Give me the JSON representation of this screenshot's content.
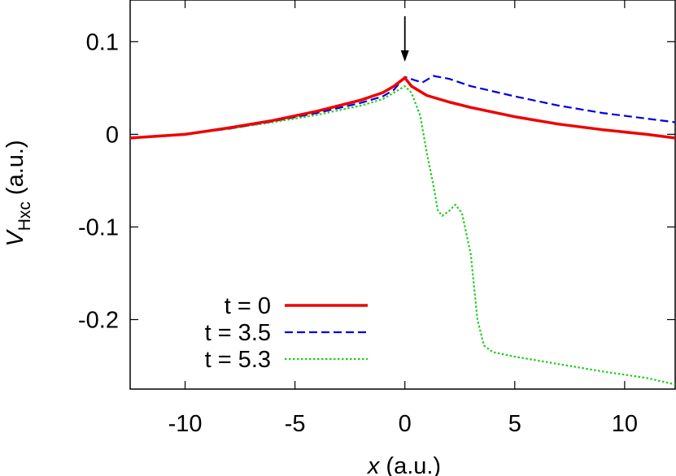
{
  "chart_data": {
    "type": "line",
    "xlabel": "x",
    "xlabel_units": "(a.u.)",
    "ylabel": "V",
    "ylabel_subscript": "Hxc",
    "ylabel_units": "(a.u.)",
    "xlim": [
      -12.5,
      12.3
    ],
    "ylim": [
      -0.275,
      0.145
    ],
    "xticks": [
      -10,
      -5,
      0,
      5,
      10
    ],
    "xtick_labels": [
      "-10",
      "-5",
      "0",
      "5",
      "10"
    ],
    "yticks": [
      0.1,
      0,
      -0.1,
      -0.2
    ],
    "ytick_labels": [
      "0.1",
      "0",
      "-0.1",
      "-0.2"
    ],
    "grid": false,
    "legend_position": "bottom-left",
    "annotation": {
      "type": "arrow",
      "x": 0,
      "direction": "down"
    },
    "series": [
      {
        "name": "t = 0",
        "color": "#ee0000",
        "dash": "solid",
        "x": [
          -12.5,
          -10,
          -8,
          -6,
          -4,
          -2,
          -1,
          -0.5,
          0,
          0.3,
          1,
          2,
          3,
          5,
          7,
          9,
          11,
          12.3
        ],
        "y": [
          -0.004,
          0.0,
          0.007,
          0.015,
          0.025,
          0.037,
          0.045,
          0.052,
          0.061,
          0.052,
          0.042,
          0.035,
          0.029,
          0.019,
          0.011,
          0.005,
          0.0,
          -0.004
        ]
      },
      {
        "name": "t = 3.5",
        "color": "#0000dd",
        "dash": "dashed",
        "x": [
          -12.5,
          -10,
          -8,
          -6,
          -4,
          -2,
          -1,
          -0.5,
          0,
          0.5,
          0.8,
          1.3,
          2,
          3,
          5,
          7,
          9,
          11,
          12.3
        ],
        "y": [
          -0.004,
          0.0,
          0.006,
          0.014,
          0.023,
          0.034,
          0.041,
          0.048,
          0.062,
          0.058,
          0.056,
          0.063,
          0.06,
          0.052,
          0.041,
          0.031,
          0.023,
          0.017,
          0.013
        ]
      },
      {
        "name": "t = 5.3",
        "color": "#22cc22",
        "dash": "dotted",
        "x": [
          -12.5,
          -10,
          -8,
          -6,
          -4,
          -2,
          -1,
          -0.5,
          0,
          0.3,
          0.7,
          1,
          1.3,
          1.5,
          1.7,
          2,
          2.3,
          2.6,
          3,
          3.3,
          3.6,
          4,
          5,
          7,
          9,
          11,
          12.3
        ],
        "y": [
          -0.004,
          0.0,
          0.006,
          0.013,
          0.021,
          0.031,
          0.038,
          0.045,
          0.052,
          0.045,
          0.02,
          -0.02,
          -0.055,
          -0.082,
          -0.088,
          -0.083,
          -0.076,
          -0.085,
          -0.13,
          -0.2,
          -0.228,
          -0.235,
          -0.24,
          -0.248,
          -0.256,
          -0.263,
          -0.27
        ]
      }
    ]
  }
}
